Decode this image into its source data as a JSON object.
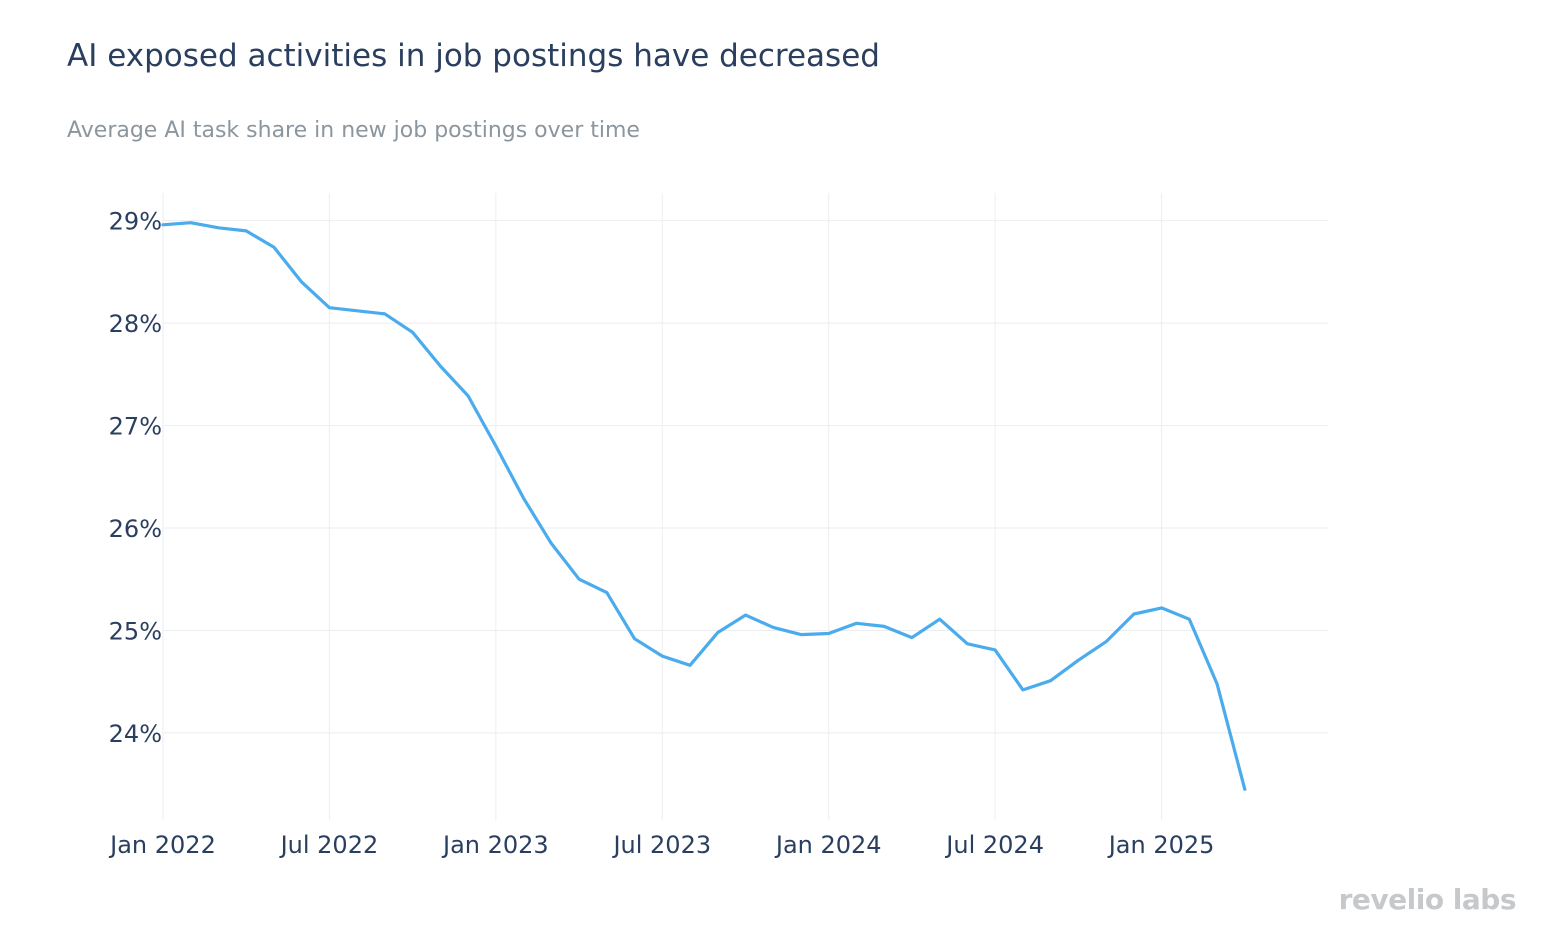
{
  "chart_data": {
    "type": "line",
    "title": "AI exposed activities in job postings have decreased",
    "subtitle": "Average AI task share in new job postings over time",
    "xlabel": "",
    "ylabel": "",
    "x_ticks": [
      "Jan 2022",
      "Jul 2022",
      "Jan 2023",
      "Jul 2023",
      "Jan 2024",
      "Jul 2024",
      "Jan 2025"
    ],
    "y_ticks": [
      "24%",
      "25%",
      "26%",
      "27%",
      "28%",
      "29%"
    ],
    "y_tick_values": [
      24,
      25,
      26,
      27,
      28,
      29
    ],
    "ylim": [
      23.15,
      29.27
    ],
    "xlim": [
      "2022-01-01",
      "2025-07-01"
    ],
    "grid": true,
    "line_color": "#4aabed",
    "series": [
      {
        "name": "",
        "x": [
          "2022-01",
          "2022-02",
          "2022-03",
          "2022-04",
          "2022-05",
          "2022-06",
          "2022-07",
          "2022-08",
          "2022-09",
          "2022-10",
          "2022-11",
          "2022-12",
          "2023-01",
          "2023-02",
          "2023-03",
          "2023-04",
          "2023-05",
          "2023-06",
          "2023-07",
          "2023-08",
          "2023-09",
          "2023-10",
          "2023-11",
          "2023-12",
          "2024-01",
          "2024-02",
          "2024-03",
          "2024-04",
          "2024-05",
          "2024-06",
          "2024-07",
          "2024-08",
          "2024-09",
          "2024-10",
          "2024-11",
          "2024-12",
          "2025-01",
          "2025-02",
          "2025-03",
          "2025-04",
          "2025-05"
        ],
        "values": [
          28.96,
          28.98,
          28.93,
          28.9,
          28.74,
          28.4,
          28.15,
          28.12,
          28.09,
          27.91,
          27.58,
          27.29,
          26.8,
          26.29,
          25.85,
          25.5,
          25.37,
          24.92,
          24.75,
          24.66,
          24.98,
          25.15,
          25.03,
          24.96,
          24.97,
          25.07,
          25.04,
          24.93,
          25.11,
          24.87,
          24.81,
          24.42,
          24.51,
          24.71,
          24.89,
          25.16,
          25.22,
          25.11,
          24.48,
          23.45,
          null
        ]
      }
    ]
  },
  "branding": {
    "logo_text": "revelio labs"
  }
}
